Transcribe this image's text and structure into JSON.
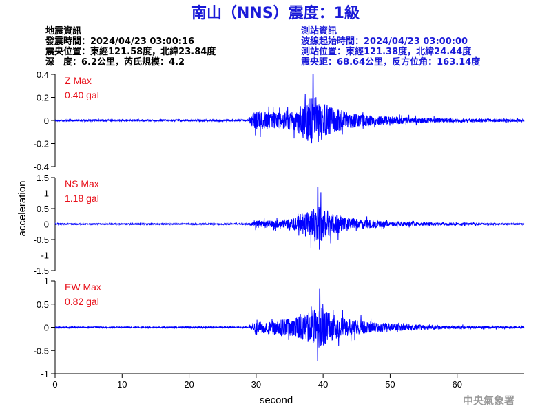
{
  "header": {
    "title": "南山（NNS）震度：1級"
  },
  "earthquake_info": {
    "heading": "地震資訊",
    "time": "發震時間：2024/04/23 03:00:16",
    "epicenter": "震央位置：東經121.58度，北緯23.84度",
    "depth_magnitude": "深　度：6.2公里，芮氏規模：4.2"
  },
  "station_info": {
    "heading": "測站資訊",
    "waveform_start": "波線起始時間：2024/04/23 03:00:00",
    "location": "測站位置：東經121.38度，北緯24.44度",
    "distance": "震央距：68.64公里，反方位角：163.14度"
  },
  "footer": {
    "agency": "中央氣象署"
  },
  "colors": {
    "title": "#1a1ad8",
    "station_info": "#1a1ad8",
    "wave": "#0000ff",
    "panel_label": "#e8101a",
    "footer": "#9a9a9a"
  },
  "chart_data": [
    {
      "type": "line",
      "component": "Z",
      "label": "Z Max",
      "max_text": "0.40 gal",
      "max_value": 0.4,
      "ylim": [
        -0.4,
        0.4
      ],
      "yticks": [
        0.4,
        0.2,
        0,
        -0.2,
        -0.4
      ],
      "ytick_labels": [
        "0.4",
        "0.2",
        "0",
        "-0.2",
        "-0.4"
      ],
      "xlim": [
        0,
        70
      ],
      "onset_second": 29,
      "peak_second": 38.5,
      "background_noise": 0.008,
      "envelope": [
        [
          29,
          0.05
        ],
        [
          30,
          0.16
        ],
        [
          33,
          0.12
        ],
        [
          36,
          0.17
        ],
        [
          38.5,
          0.4
        ],
        [
          41,
          0.22
        ],
        [
          44,
          0.12
        ],
        [
          48,
          0.07
        ],
        [
          55,
          0.04
        ],
        [
          62,
          0.025
        ],
        [
          70,
          0.02
        ]
      ]
    },
    {
      "type": "line",
      "component": "NS",
      "label": "NS Max",
      "max_text": "1.18 gal",
      "max_value": 1.18,
      "ylim": [
        -1.5,
        1.5
      ],
      "yticks": [
        1.5,
        1,
        0.5,
        0,
        -0.5,
        -1,
        -1.5
      ],
      "ytick_labels": [
        "1.5",
        "1",
        "0.5",
        "0",
        "-0.5",
        "-1",
        "-1.5"
      ],
      "xlim": [
        0,
        70
      ],
      "onset_second": 29,
      "peak_second": 39.2,
      "background_noise": 0.02,
      "envelope": [
        [
          29,
          0.05
        ],
        [
          30,
          0.22
        ],
        [
          33,
          0.22
        ],
        [
          36,
          0.4
        ],
        [
          39.2,
          1.18
        ],
        [
          42,
          0.55
        ],
        [
          45,
          0.3
        ],
        [
          50,
          0.15
        ],
        [
          57,
          0.08
        ],
        [
          64,
          0.05
        ],
        [
          70,
          0.04
        ]
      ]
    },
    {
      "type": "line",
      "component": "EW",
      "label": "EW Max",
      "max_text": "0.82 gal",
      "max_value": 0.82,
      "ylim": [
        -1,
        1
      ],
      "yticks": [
        1,
        0.5,
        0,
        -0.5,
        -1
      ],
      "ytick_labels": [
        "1",
        "0.5",
        "0",
        "-0.5",
        "-1"
      ],
      "xlim": [
        0,
        70
      ],
      "onset_second": 29,
      "peak_second": 39.5,
      "background_noise": 0.015,
      "envelope": [
        [
          29,
          0.05
        ],
        [
          30,
          0.2
        ],
        [
          33,
          0.28
        ],
        [
          36,
          0.38
        ],
        [
          39.5,
          0.82
        ],
        [
          42,
          0.45
        ],
        [
          45,
          0.28
        ],
        [
          50,
          0.15
        ],
        [
          57,
          0.08
        ],
        [
          64,
          0.05
        ],
        [
          70,
          0.04
        ]
      ]
    }
  ],
  "axes": {
    "ylabel": "acceleration",
    "xlabel": "second",
    "xticks": [
      0,
      10,
      20,
      30,
      40,
      50,
      60
    ],
    "xtick_labels": [
      "0",
      "10",
      "20",
      "30",
      "40",
      "50",
      "60"
    ]
  }
}
